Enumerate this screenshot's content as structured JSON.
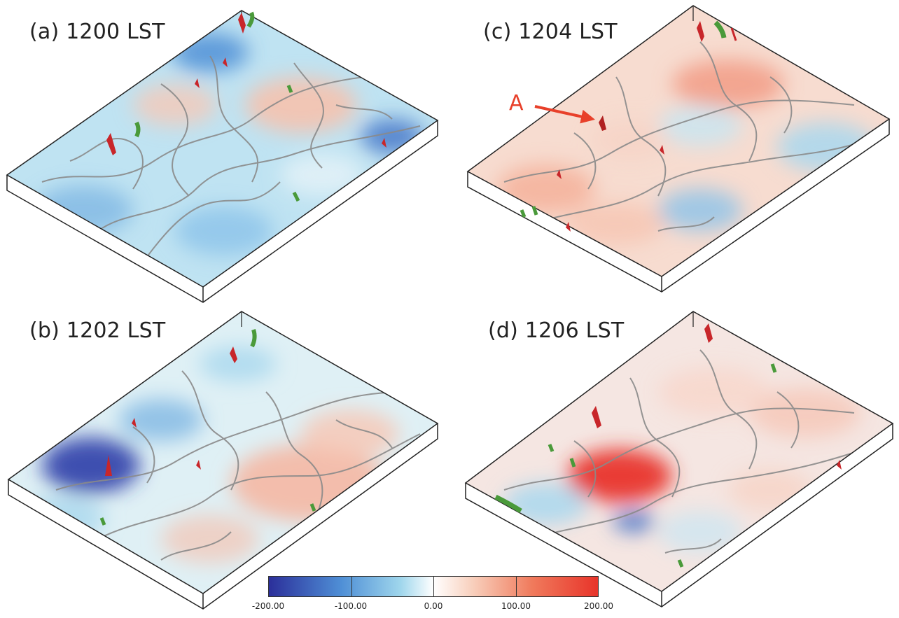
{
  "panels": [
    {
      "label": "(a) 1200 LST"
    },
    {
      "label": "(b) 1202 LST"
    },
    {
      "label": "(c) 1204 LST"
    },
    {
      "label": "(d) 1206 LST"
    }
  ],
  "annotation": {
    "letter": "A",
    "color": "#e8402a"
  },
  "colorbar": {
    "min": -200,
    "max": 200,
    "tick_labels": [
      "-200.00",
      "-100.00",
      "0.00",
      "100.00",
      "200.00"
    ],
    "colors": [
      "#2b2f9a",
      "#4f8fd6",
      "#8fcdea",
      "#ffffff",
      "#f8c4b0",
      "#f07a5c",
      "#e8342a"
    ]
  },
  "colors": {
    "contour": "#8a8a8a",
    "box_edge": "#222222",
    "vortex_red": "#c8262a",
    "vortex_green": "#4a9a3a"
  }
}
